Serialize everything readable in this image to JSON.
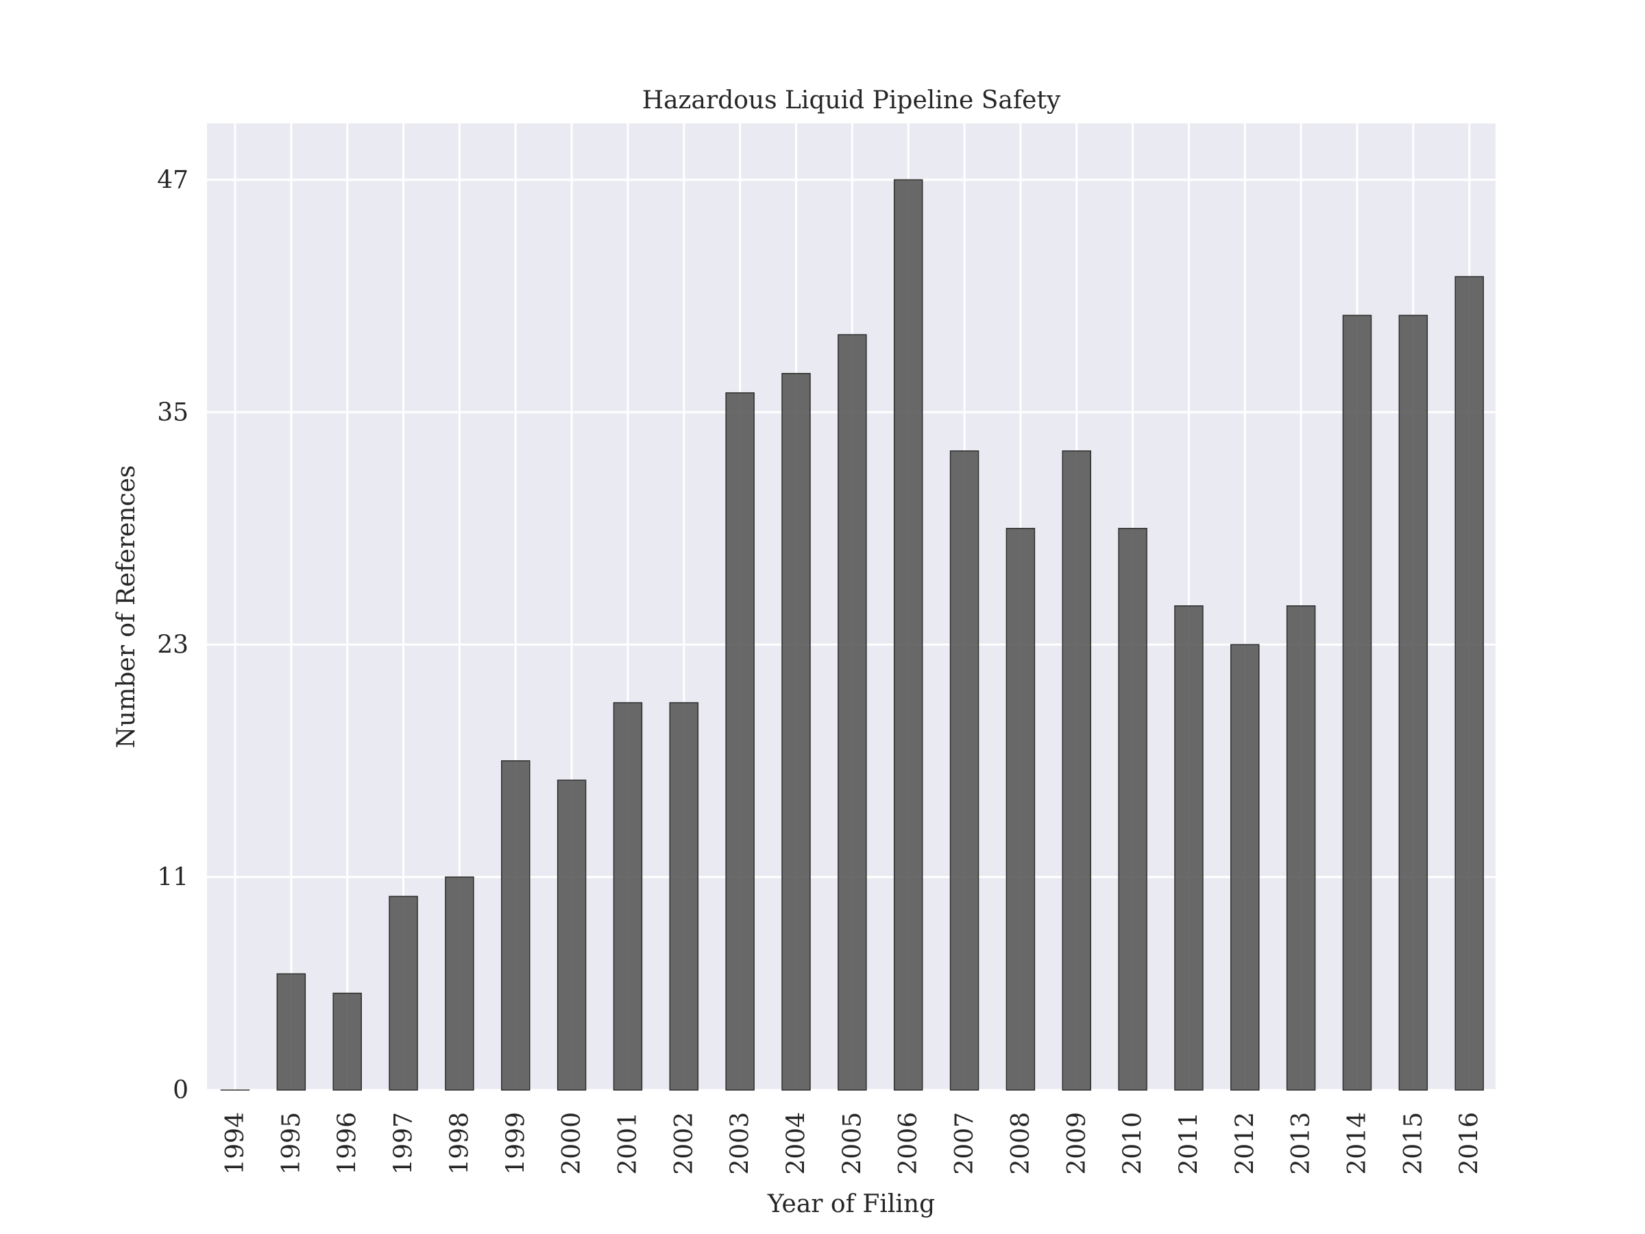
{
  "chart_data": {
    "type": "bar",
    "title": "Hazardous Liquid Pipeline Safety",
    "xlabel": "Year of Filing",
    "ylabel": "Number of References",
    "categories": [
      "1994",
      "1995",
      "1996",
      "1997",
      "1998",
      "1999",
      "2000",
      "2001",
      "2002",
      "2003",
      "2004",
      "2005",
      "2006",
      "2007",
      "2008",
      "2009",
      "2010",
      "2011",
      "2012",
      "2013",
      "2014",
      "2015",
      "2016"
    ],
    "values": [
      0,
      6,
      5,
      10,
      11,
      17,
      16,
      20,
      20,
      36,
      37,
      39,
      47,
      33,
      29,
      33,
      29,
      25,
      23,
      25,
      40,
      40,
      42
    ],
    "yticks": [
      0,
      11,
      23,
      35,
      47
    ],
    "ylim": [
      0,
      50
    ],
    "grid": true,
    "colors": {
      "bar": "#555555",
      "background": "#eaeaf2",
      "grid": "#ffffff"
    }
  }
}
